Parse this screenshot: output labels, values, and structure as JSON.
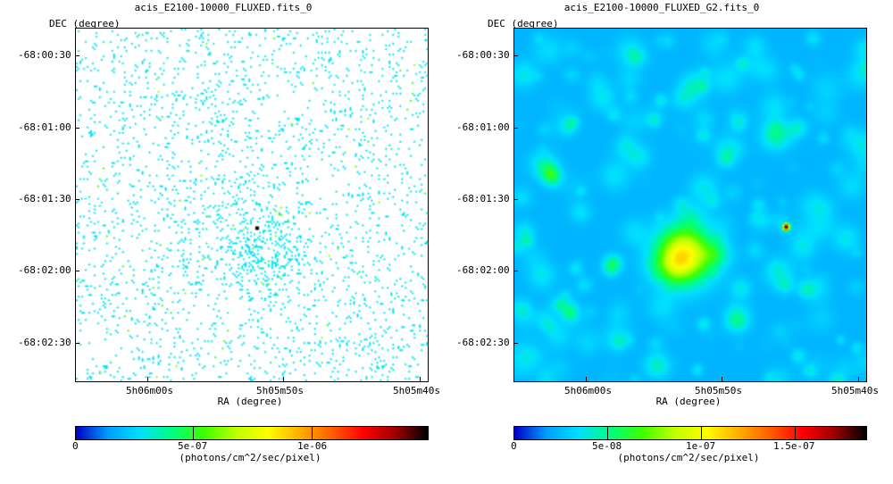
{
  "panels": [
    {
      "title": "acis_E2100-10000_FLUXED.fits_0",
      "y_axis_label": "DEC (degree)",
      "x_axis_label": "RA (degree)",
      "dec_ticks": [
        "-68:00:30",
        "-68:01:00",
        "-68:01:30",
        "-68:02:00",
        "-68:02:30"
      ],
      "ra_ticks": [
        "5h06m00s",
        "5h05m50s",
        "5h05m40s"
      ],
      "colorbar_ticks": [
        "0",
        "5e-07",
        "1e-06"
      ],
      "colorbar_unit": "(photons/cm^2/sec/pixel)",
      "colormap": [
        "#0000c8",
        "#00a0ff",
        "#00e0ff",
        "#00ff80",
        "#40ff00",
        "#c0ff00",
        "#ffff00",
        "#ffb000",
        "#ff6000",
        "#ff0000",
        "#a00000",
        "#000000"
      ]
    },
    {
      "title": "acis_E2100-10000_FLUXED_G2.fits_0",
      "y_axis_label": "DEC (degree)",
      "x_axis_label": "RA (degree)",
      "dec_ticks": [
        "-68:00:30",
        "-68:01:00",
        "-68:01:30",
        "-68:02:00",
        "-68:02:30"
      ],
      "ra_ticks": [
        "5h06m00s",
        "5h05m50s",
        "5h05m40s"
      ],
      "colorbar_ticks": [
        "0",
        "5e-08",
        "1e-07",
        "1.5e-07"
      ],
      "colorbar_unit": "(photons/cm^2/sec/pixel)",
      "colormap": [
        "#0000c8",
        "#00a0ff",
        "#00e0ff",
        "#00ff80",
        "#40ff00",
        "#c0ff00",
        "#ffff00",
        "#ffb000",
        "#ff6000",
        "#ff0000",
        "#a00000",
        "#000000"
      ]
    }
  ]
}
